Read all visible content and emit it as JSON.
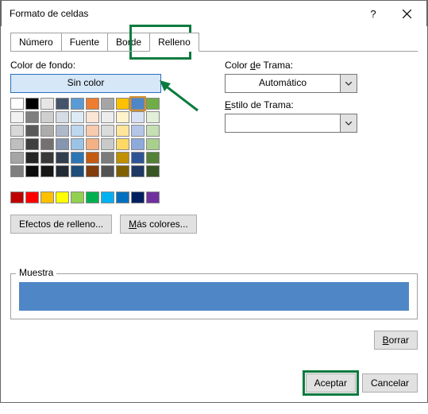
{
  "title": "Formato de celdas",
  "tabs": [
    "Número",
    "Fuente",
    "Borde",
    "Relleno"
  ],
  "active_tab": 3,
  "left": {
    "color_label": "Color de fondo:",
    "nocolor": "Sin color",
    "theme_colors": [
      [
        "#ffffff",
        "#000000",
        "#e7e6e6",
        "#44546a",
        "#5b9bd5",
        "#ed7d31",
        "#a5a5a5",
        "#ffc000",
        "#4f86c6",
        "#70ad47"
      ],
      [
        "#f2f2f2",
        "#7f7f7f",
        "#d0cece",
        "#d6dce4",
        "#deebf6",
        "#fbe5d5",
        "#ededed",
        "#fff2cc",
        "#d9e2f3",
        "#e2efd9"
      ],
      [
        "#d8d8d8",
        "#595959",
        "#aeabab",
        "#adb9ca",
        "#bdd7ee",
        "#f7cbac",
        "#dbdbdb",
        "#fee599",
        "#b4c6e7",
        "#c5e0b3"
      ],
      [
        "#bfbfbf",
        "#3f3f3f",
        "#757070",
        "#8496b0",
        "#9cc3e5",
        "#f4b183",
        "#c9c9c9",
        "#ffd965",
        "#8eaadb",
        "#a8d08d"
      ],
      [
        "#a5a5a5",
        "#262626",
        "#3a3838",
        "#323f4f",
        "#2e75b5",
        "#c55a11",
        "#7b7b7b",
        "#bf9000",
        "#2f5496",
        "#538135"
      ],
      [
        "#7f7f7f",
        "#0c0c0c",
        "#171616",
        "#222a35",
        "#1e4e79",
        "#833c0b",
        "#525252",
        "#7f6000",
        "#1f3864",
        "#375623"
      ]
    ],
    "selected_theme": [
      0,
      8
    ],
    "standard_colors": [
      "#c00000",
      "#ff0000",
      "#ffc000",
      "#ffff00",
      "#92d050",
      "#00b050",
      "#00b0f0",
      "#0070c0",
      "#002060",
      "#7030a0"
    ],
    "effects_btn": "Efectos de relleno...",
    "more_btn": "Más colores..."
  },
  "right": {
    "pattern_color_label": "Color de Trama:",
    "pattern_color_value": "Automático",
    "pattern_style_label": "Estilo de Trama:",
    "pattern_style_value": ""
  },
  "muestra_label": "Muestra",
  "sample_color": "#4f86c6",
  "borrar": "Borrar",
  "aceptar": "Aceptar",
  "cancelar": "Cancelar",
  "highlight_color": "#0a7b3e",
  "arrow_color": "#0a7b3e"
}
